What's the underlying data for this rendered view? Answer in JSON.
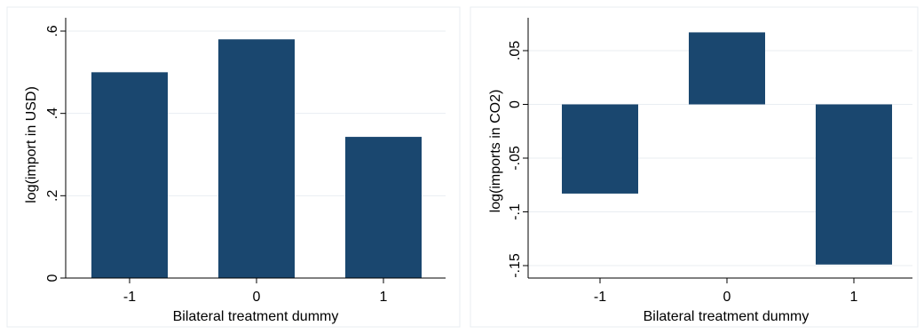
{
  "colors": {
    "bar": "#1a476f",
    "grid": "#e9edf2",
    "background": "#ffffff"
  },
  "chart_data": [
    {
      "type": "bar",
      "categories": [
        "-1",
        "0",
        "1"
      ],
      "values": [
        0.5,
        0.58,
        0.343
      ],
      "xlabel": "Bilateral treatment dummy",
      "ylabel": "log(import in USD)",
      "ylim": [
        0,
        0.6
      ],
      "yticks": [
        0,
        0.2,
        0.4,
        0.6
      ],
      "ytick_labels": [
        "0",
        ".2",
        ".4",
        ".6"
      ],
      "grid": true
    },
    {
      "type": "bar",
      "categories": [
        "-1",
        "0",
        "1"
      ],
      "values": [
        -0.083,
        0.067,
        -0.149
      ],
      "xlabel": "Bilateral treatment dummy",
      "ylabel": "log(imports in CO2)",
      "ylim": [
        -0.15,
        0.05
      ],
      "yticks": [
        -0.15,
        -0.1,
        -0.05,
        0,
        0.05
      ],
      "ytick_labels": [
        "-.15",
        "-.1",
        "-.05",
        "0",
        ".05"
      ],
      "grid": true
    }
  ]
}
